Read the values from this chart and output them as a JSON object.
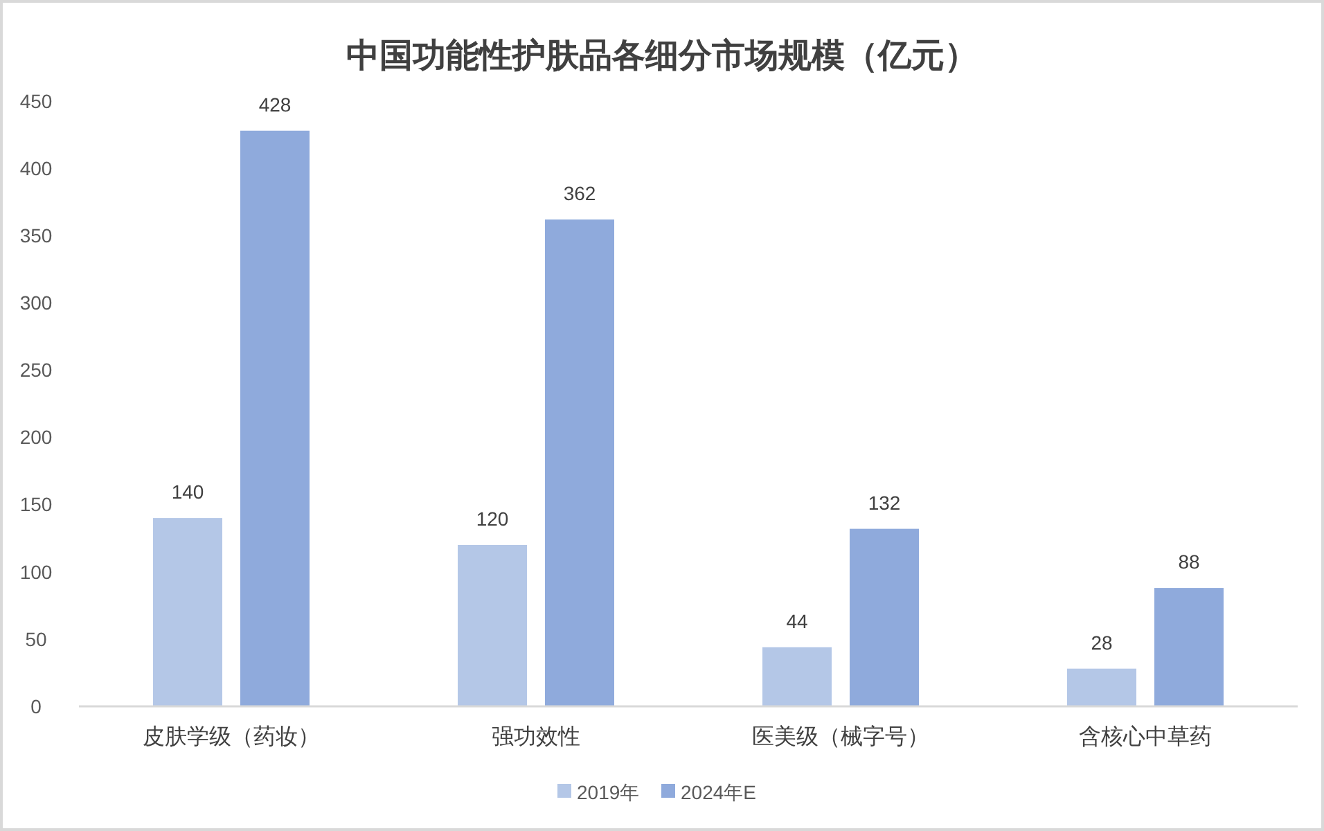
{
  "chart_data": {
    "type": "bar",
    "title": "中国功能性护肤品各细分市场规模（亿元）",
    "categories": [
      "皮肤学级（药妆）",
      "强功效性",
      "医美级（械字号）",
      "含核心中草药"
    ],
    "series": [
      {
        "name": "2019年",
        "color": "#b4c7e7",
        "values": [
          140,
          120,
          44,
          28
        ]
      },
      {
        "name": "2024年E",
        "color": "#8faadc",
        "values": [
          428,
          362,
          132,
          88
        ]
      }
    ],
    "ylim": [
      0,
      450
    ],
    "yticks": [
      0,
      50,
      100,
      150,
      200,
      250,
      300,
      350,
      400,
      450
    ],
    "legend": "bottom",
    "data_labels": true
  }
}
